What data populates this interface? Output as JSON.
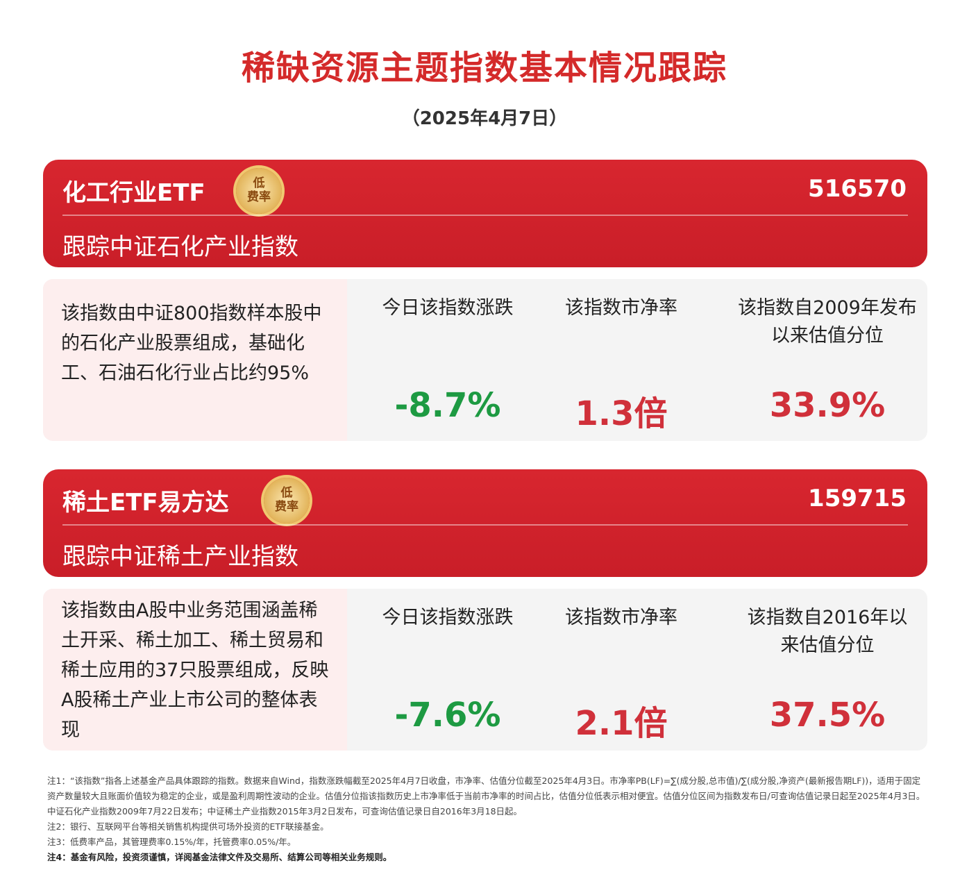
{
  "title": "稀缺资源主题指数基本情况跟踪",
  "subtitle": "（2025年4月7日）",
  "badge": {
    "line1": "低",
    "line2": "费率"
  },
  "cards": [
    {
      "name": "化工行业ETF",
      "code": "516570",
      "track": "跟踪中证石化产业指数",
      "description": "该指数由中证800指数样本股中的石化产业股票组成，基础化工、石油石化行业占比约95%",
      "change_label": "今日该指数涨跌",
      "change_value": "-8.7%",
      "pb_label": "该指数市净率",
      "pb_value": "1.3倍",
      "pct_label": "该指数自2009年发布以来估值分位",
      "pct_value": "33.9%"
    },
    {
      "name": "稀土ETF易方达",
      "code": "159715",
      "track": "跟踪中证稀土产业指数",
      "description": "该指数由A股中业务范围涵盖稀土开采、稀土加工、稀土贸易和稀土应用的37只股票组成，反映A股稀土产业上市公司的整体表现",
      "change_label": "今日该指数涨跌",
      "change_value": "-7.6%",
      "pb_label": "该指数市净率",
      "pb_value": "2.1倍",
      "pct_label": "该指数自2016年以来估值分位",
      "pct_value": "37.5%"
    }
  ],
  "notes": [
    "注1：“该指数”指各上述基金产品具体跟踪的指数。数据来自Wind，指数涨跌幅截至2025年4月7日收盘，市净率、估值分位截至2025年4月3日。市净率PB(LF)=∑(成分股,总市值)/∑(成分股,净资产(最新报告期LF))，适用于固定资产数量较大且账面价值较为稳定的企业，或是盈利周期性波动的企业。估值分位指该指数历史上市净率低于当前市净率的时间占比，估值分位低表示相对便宜。估值分位区间为指数发布日/可查询估值记录日起至2025年4月3日。中证石化产业指数2009年7月22日发布；中证稀土产业指数2015年3月2日发布，可查询估值记录日自2016年3月18日起。",
    "注2：银行、互联网平台等相关销售机构提供可场外投资的ETF联接基金。",
    "注3：低费率产品，其管理费率0.15%/年，托管费率0.05%/年。",
    "注4：基金有风险，投资须谨慎，详阅基金法律文件及交易所、结算公司等相关业务规则。"
  ],
  "colors": {
    "red": "#d42a2a",
    "green": "#1d9a42"
  }
}
